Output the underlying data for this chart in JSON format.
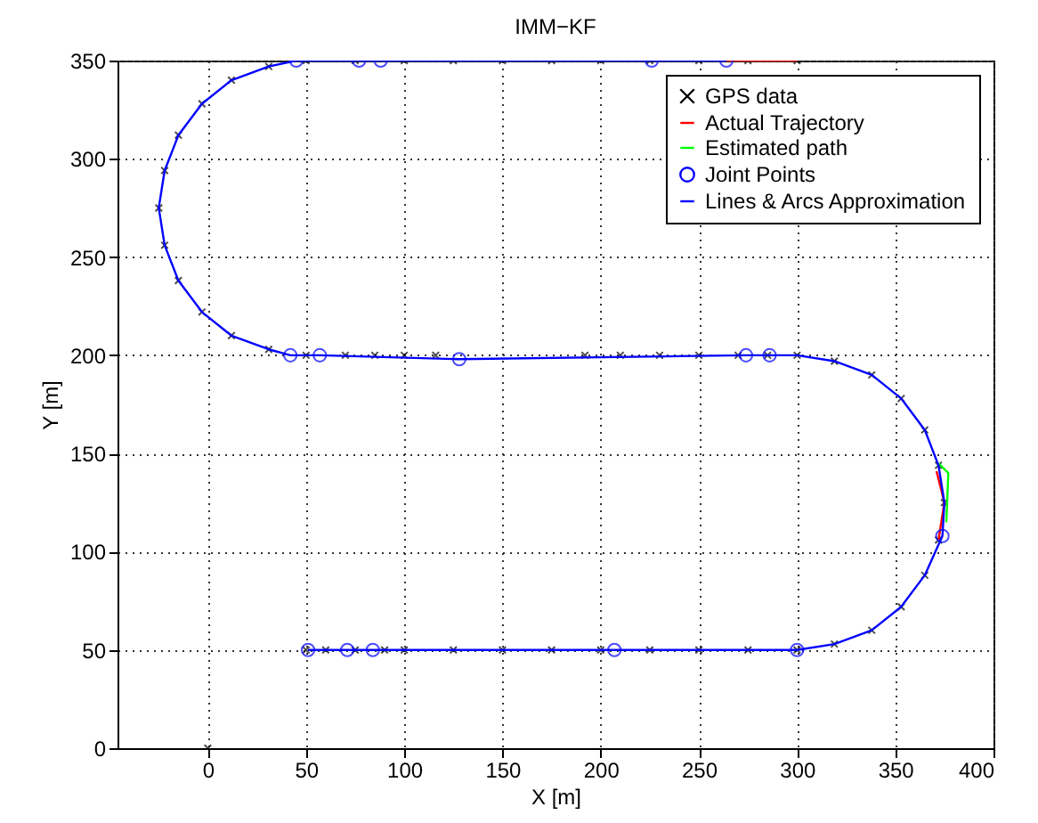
{
  "chart_data": {
    "type": "line",
    "title": "IMM−KF",
    "xlabel": "X [m]",
    "ylabel": "Y [m]",
    "xlim": [
      -46,
      400
    ],
    "ylim": [
      0,
      350
    ],
    "xticks": [
      0,
      50,
      100,
      150,
      200,
      250,
      300,
      350,
      400
    ],
    "yticks": [
      0,
      50,
      100,
      150,
      200,
      250,
      300,
      350
    ],
    "grid": true,
    "legend": "top right",
    "series": [
      {
        "name": "GPS data",
        "type": "scatter",
        "marker": "cross",
        "color": "#000000",
        "x": [
          0,
          50,
          60,
          75,
          90,
          100,
          125,
          150,
          175,
          200,
          225,
          250,
          275,
          300,
          319,
          338,
          353,
          365,
          372,
          375,
          372,
          365,
          353,
          338,
          319,
          300,
          285,
          270,
          250,
          230,
          210,
          192,
          116,
          100,
          85,
          70,
          50,
          31,
          12,
          -3,
          -15,
          -22,
          -25,
          -22,
          -15,
          -3,
          12,
          31,
          50,
          75,
          100,
          125,
          150,
          175,
          200,
          225,
          250,
          275,
          300
        ],
        "values": [
          0,
          50,
          50,
          50,
          50,
          50,
          50,
          50,
          50,
          50,
          50,
          50,
          50,
          50,
          53,
          60,
          72,
          88,
          106,
          125,
          144,
          162,
          178,
          190,
          197,
          200,
          200,
          200,
          200,
          200,
          200,
          200,
          200,
          200,
          200,
          200,
          200,
          203,
          210,
          222,
          238,
          256,
          275,
          294,
          312,
          328,
          340,
          347,
          350,
          350,
          350,
          350,
          350,
          350,
          350,
          350,
          350,
          350,
          350
        ]
      },
      {
        "name": "Actual Trajectory",
        "color": "#ff0000",
        "x": [
          372,
          375,
          371,
          null,
          264,
          300
        ],
        "values": [
          106,
          125,
          141,
          null,
          350,
          350
        ]
      },
      {
        "name": "Estimated path",
        "color": "#00ff00",
        "x": [
          376,
          377,
          372
        ],
        "values": [
          115,
          140,
          145
        ]
      },
      {
        "name": "Joint Points",
        "type": "scatter",
        "marker": "circle",
        "color": "#0000ff",
        "x": [
          51,
          71,
          84,
          207,
          300,
          374,
          286,
          274,
          128,
          57,
          42,
          45,
          77,
          88,
          226,
          264
        ],
        "values": [
          50,
          50,
          50,
          50,
          50,
          108,
          200,
          200,
          198,
          200,
          200,
          350,
          350,
          350,
          350,
          350
        ]
      },
      {
        "name": "Lines & Arcs Approximation",
        "color": "#0000ff",
        "x": [
          51,
          300,
          319,
          338,
          353,
          365,
          374,
          375,
          372,
          365,
          353,
          338,
          319,
          300,
          286,
          274,
          128,
          57,
          42,
          31,
          12,
          -3,
          -15,
          -22,
          -25,
          -22,
          -15,
          -3,
          12,
          31,
          45,
          77,
          88,
          226,
          264
        ],
        "values": [
          50,
          50,
          53,
          60,
          72,
          88,
          108,
          125,
          144,
          162,
          178,
          190,
          197,
          200,
          200,
          200,
          198,
          200,
          200,
          203,
          210,
          222,
          238,
          256,
          275,
          294,
          312,
          328,
          340,
          347,
          350,
          350,
          350,
          350,
          350
        ]
      }
    ]
  }
}
